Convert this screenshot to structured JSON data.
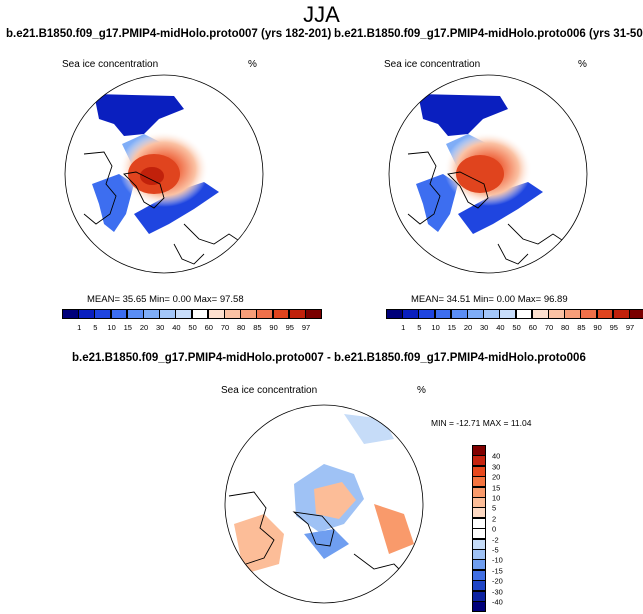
{
  "figure": {
    "title": "JJA",
    "variable": "Sea ice concentration",
    "units": "%"
  },
  "panels": [
    {
      "title": "b.e21.B1850.f09_g17.PMIP4-midHolo.proto007 (yrs 182-201)",
      "mean_label": "MEAN=",
      "mean": "35.65",
      "min_label": "Min=",
      "min": "0.00",
      "max_label": "Max=",
      "max": "97.58"
    },
    {
      "title": "b.e21.B1850.f09_g17.PMIP4-midHolo.proto006 (yrs 31-50)",
      "mean_label": "MEAN=",
      "mean": "34.51",
      "min_label": "Min=",
      "min": "0.00",
      "max_label": "Max=",
      "max": "96.89"
    }
  ],
  "diff": {
    "title": "b.e21.B1850.f09_g17.PMIP4-midHolo.proto007 - b.e21.B1850.f09_g17.PMIP4-midHolo.proto006",
    "stats": "MIN = -12.71 MAX =  11.04"
  },
  "colorbar_seq": {
    "labels": [
      "1",
      "5",
      "10",
      "15",
      "20",
      "30",
      "40",
      "50",
      "60",
      "70",
      "80",
      "85",
      "90",
      "95",
      "97"
    ],
    "colors": [
      "#00007a",
      "#0a1fbf",
      "#1f45e0",
      "#3d6ef0",
      "#5b8ef5",
      "#7fadf7",
      "#a3c6f9",
      "#c8ddfb",
      "#ffffff",
      "#fde0cf",
      "#fbc2a4",
      "#f79e79",
      "#f0704a",
      "#e0441e",
      "#c1210b",
      "#7a0000"
    ]
  },
  "colorbar_diff": {
    "labels": [
      "40",
      "30",
      "20",
      "15",
      "10",
      "5",
      "2",
      "0",
      "-2",
      "-5",
      "-10",
      "-15",
      "-20",
      "-30",
      "-40"
    ],
    "colors": [
      "#800000",
      "#c62410",
      "#e8491e",
      "#f47440",
      "#f99a6b",
      "#fcbd98",
      "#fdd9c3",
      "#ffffff",
      "#ffffff",
      "#c6dcf8",
      "#9fc2f5",
      "#6f9ef0",
      "#416fe3",
      "#1f45c6",
      "#0d22a0",
      "#00007a"
    ]
  }
}
